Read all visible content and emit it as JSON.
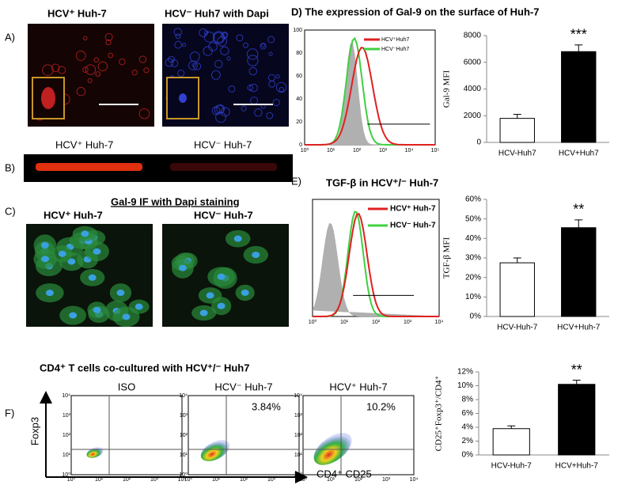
{
  "panels": {
    "a": "A)",
    "b": "B)",
    "c": "C)",
    "d": "D) The expression of Gal-9 on the surface of Huh-7",
    "e": "E)",
    "f": "F)"
  },
  "images_a": [
    "HCV⁺ Huh-7",
    "HCV⁻ Huh7 with Dapi"
  ],
  "western_b": [
    "HCV⁺ Huh-7",
    "HCV⁻ Huh-7"
  ],
  "if_c": {
    "title": "Gal-9 IF with Dapi staining",
    "labels": [
      "HCV⁺ Huh-7",
      "HCV⁻ Huh-7"
    ]
  },
  "hist_d": {
    "legend": [
      "HCV⁺Huh7",
      "HCV⁻Huh7"
    ],
    "xticks": [
      "10⁰",
      "10¹",
      "10²",
      "10³",
      "10⁴",
      "10⁵"
    ],
    "yticks": [
      "0",
      "20",
      "40",
      "60",
      "80",
      "100"
    ]
  },
  "hist_e": {
    "title": "TGF-β in HCV⁺/⁻ Huh-7",
    "legend": [
      "HCV⁺ Huh-7",
      "HCV⁻ Huh-7"
    ],
    "xticks": [
      "10⁰",
      "10¹",
      "10²",
      "10³",
      "10⁴"
    ]
  },
  "flow_f": {
    "title": "CD4⁺ T cells co-cultured with  HCV⁺/⁻ Huh7",
    "plots": [
      {
        "title": "ISO"
      },
      {
        "title": "HCV⁻ Huh-7",
        "quadrant": "3.84%"
      },
      {
        "title": "HCV⁺ Huh-7",
        "quadrant": "10.2%"
      }
    ],
    "ylabel": "Foxp3",
    "xlabel": "CD4⁺ CD25",
    "ticks": [
      "10⁰",
      "10¹",
      "10²",
      "10³",
      "10⁴"
    ]
  },
  "chart_data": [
    {
      "type": "bar",
      "ylabel": "Gal-9 MFI",
      "annotation": "***",
      "categories": [
        "HCV-Huh7",
        "HCV+Huh7"
      ],
      "values": [
        1800,
        6800
      ],
      "errors": [
        300,
        500
      ],
      "colors": [
        "#ffffff",
        "#000000"
      ],
      "ylim": [
        0,
        8000
      ],
      "yticks": [
        0,
        2000,
        4000,
        6000,
        8000
      ]
    },
    {
      "type": "bar",
      "ylabel": "TGF-β MFI",
      "annotation": "**",
      "categories": [
        "HCV-Huh-7",
        "HCV+Huh-7"
      ],
      "values": [
        27.5,
        45.5
      ],
      "errors": [
        2.5,
        4
      ],
      "colors": [
        "#ffffff",
        "#000000"
      ],
      "ylim": [
        0,
        60
      ],
      "yticks": [
        {
          "value": 0,
          "label": "0%"
        },
        {
          "value": 10,
          "label": "10%"
        },
        {
          "value": 20,
          "label": "20%"
        },
        {
          "value": 30,
          "label": "30%"
        },
        {
          "value": 40,
          "label": "40%"
        },
        {
          "value": 50,
          "label": "50%"
        },
        {
          "value": 60,
          "label": "60%"
        }
      ]
    },
    {
      "type": "bar",
      "ylabel": "CD25⁺Foxp3⁺/CD4⁺",
      "annotation": "**",
      "categories": [
        "HCV-Huh-7",
        "HCV+Huh-7"
      ],
      "values": [
        3.8,
        10.2
      ],
      "errors": [
        0.4,
        0.6
      ],
      "colors": [
        "#ffffff",
        "#000000"
      ],
      "ylim": [
        0,
        12
      ],
      "yticks": [
        {
          "value": 0,
          "label": "0%"
        },
        {
          "value": 2,
          "label": "2%"
        },
        {
          "value": 4,
          "label": "4%"
        },
        {
          "value": 6,
          "label": "6%"
        },
        {
          "value": 8,
          "label": "8%"
        },
        {
          "value": 10,
          "label": "10%"
        },
        {
          "value": 12,
          "label": "12%"
        }
      ]
    }
  ]
}
